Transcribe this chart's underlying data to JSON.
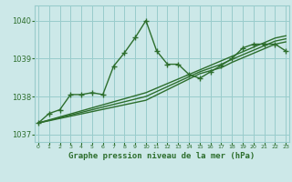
{
  "title": "Graphe pression niveau de la mer (hPa)",
  "background_color": "#cce8e8",
  "grid_color": "#99cccc",
  "line_color": "#2d6e2d",
  "ylim": [
    1036.8,
    1040.4
  ],
  "xlim": [
    -0.3,
    23.3
  ],
  "yticks": [
    1037,
    1038,
    1039,
    1040
  ],
  "xticks": [
    0,
    1,
    2,
    3,
    4,
    5,
    6,
    7,
    8,
    9,
    10,
    11,
    12,
    13,
    14,
    15,
    16,
    17,
    18,
    19,
    20,
    21,
    22,
    23
  ],
  "main_series": [
    1037.3,
    1037.55,
    1037.65,
    1038.05,
    1038.05,
    1038.1,
    1038.05,
    1038.8,
    1039.15,
    1039.55,
    1040.0,
    1039.2,
    1038.85,
    1038.85,
    1038.58,
    1038.48,
    1038.65,
    1038.82,
    1039.0,
    1039.28,
    1039.38,
    1039.38,
    1039.38,
    1039.2
  ],
  "linear_series": [
    [
      1037.3,
      1037.38,
      1037.46,
      1037.54,
      1037.62,
      1037.7,
      1037.78,
      1037.86,
      1037.94,
      1038.02,
      1038.1,
      1038.22,
      1038.34,
      1038.46,
      1038.58,
      1038.7,
      1038.82,
      1038.94,
      1039.06,
      1039.18,
      1039.3,
      1039.42,
      1039.54,
      1039.6
    ],
    [
      1037.3,
      1037.37,
      1037.44,
      1037.51,
      1037.58,
      1037.65,
      1037.72,
      1037.79,
      1037.86,
      1037.93,
      1038.0,
      1038.13,
      1038.26,
      1038.39,
      1038.52,
      1038.65,
      1038.75,
      1038.85,
      1038.98,
      1039.1,
      1039.22,
      1039.34,
      1039.46,
      1039.52
    ],
    [
      1037.3,
      1037.36,
      1037.42,
      1037.48,
      1037.54,
      1037.6,
      1037.66,
      1037.72,
      1037.78,
      1037.84,
      1037.9,
      1038.04,
      1038.18,
      1038.32,
      1038.46,
      1038.6,
      1038.68,
      1038.76,
      1038.9,
      1039.02,
      1039.14,
      1039.26,
      1039.38,
      1039.44
    ]
  ],
  "line_width": 1.0,
  "marker_size": 4
}
